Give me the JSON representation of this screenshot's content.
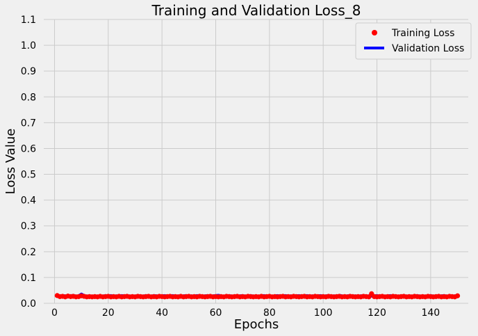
{
  "chart_data": {
    "type": "line",
    "title": "Training and Validation Loss_8",
    "xlabel": "Epochs",
    "ylabel": "Loss Value",
    "xlim": [
      -4,
      154
    ],
    "ylim": [
      0,
      1.1
    ],
    "xticks": [
      0,
      20,
      40,
      60,
      80,
      100,
      120,
      140
    ],
    "yticks": [
      0.0,
      0.1,
      0.2,
      0.3,
      0.4,
      0.5,
      0.6,
      0.7,
      0.8,
      0.9,
      1.0,
      1.1
    ],
    "grid": true,
    "legend": "top-right",
    "series": [
      {
        "name": "Training Loss",
        "style": "points",
        "color": "#ff0000",
        "x": [
          1,
          2,
          3,
          4,
          5,
          6,
          7,
          8,
          9,
          10,
          11,
          12,
          13,
          14,
          15,
          16,
          17,
          18,
          19,
          20,
          21,
          22,
          23,
          24,
          25,
          26,
          27,
          28,
          29,
          30,
          31,
          32,
          33,
          34,
          35,
          36,
          37,
          38,
          39,
          40,
          41,
          42,
          43,
          44,
          45,
          46,
          47,
          48,
          49,
          50,
          51,
          52,
          53,
          54,
          55,
          56,
          57,
          58,
          59,
          60,
          61,
          62,
          63,
          64,
          65,
          66,
          67,
          68,
          69,
          70,
          71,
          72,
          73,
          74,
          75,
          76,
          77,
          78,
          79,
          80,
          81,
          82,
          83,
          84,
          85,
          86,
          87,
          88,
          89,
          90,
          91,
          92,
          93,
          94,
          95,
          96,
          97,
          98,
          99,
          100,
          101,
          102,
          103,
          104,
          105,
          106,
          107,
          108,
          109,
          110,
          111,
          112,
          113,
          114,
          115,
          116,
          117,
          118,
          119,
          120,
          121,
          122,
          123,
          124,
          125,
          126,
          127,
          128,
          129,
          130,
          131,
          132,
          133,
          134,
          135,
          136,
          137,
          138,
          139,
          140,
          141,
          142,
          143,
          144,
          145,
          146,
          147,
          148,
          149,
          150
        ],
        "y": [
          0.03,
          0.026,
          0.027,
          0.025,
          0.028,
          0.026,
          0.027,
          0.025,
          0.026,
          0.029,
          0.027,
          0.025,
          0.026,
          0.025,
          0.026,
          0.025,
          0.027,
          0.025,
          0.026,
          0.027,
          0.025,
          0.026,
          0.025,
          0.027,
          0.025,
          0.026,
          0.027,
          0.025,
          0.026,
          0.025,
          0.027,
          0.026,
          0.025,
          0.026,
          0.027,
          0.025,
          0.026,
          0.025,
          0.027,
          0.026,
          0.025,
          0.026,
          0.027,
          0.025,
          0.026,
          0.025,
          0.027,
          0.025,
          0.026,
          0.027,
          0.025,
          0.026,
          0.025,
          0.027,
          0.026,
          0.025,
          0.026,
          0.027,
          0.025,
          0.026,
          0.025,
          0.026,
          0.025,
          0.027,
          0.026,
          0.025,
          0.026,
          0.027,
          0.025,
          0.026,
          0.025,
          0.027,
          0.026,
          0.025,
          0.026,
          0.025,
          0.027,
          0.025,
          0.026,
          0.027,
          0.025,
          0.026,
          0.025,
          0.026,
          0.027,
          0.025,
          0.026,
          0.025,
          0.027,
          0.026,
          0.025,
          0.026,
          0.027,
          0.025,
          0.026,
          0.025,
          0.027,
          0.026,
          0.025,
          0.026,
          0.025,
          0.027,
          0.026,
          0.025,
          0.026,
          0.027,
          0.025,
          0.026,
          0.025,
          0.027,
          0.026,
          0.025,
          0.026,
          0.025,
          0.027,
          0.026,
          0.025,
          0.037,
          0.026,
          0.025,
          0.026,
          0.027,
          0.025,
          0.026,
          0.025,
          0.027,
          0.026,
          0.025,
          0.026,
          0.027,
          0.025,
          0.026,
          0.025,
          0.027,
          0.026,
          0.025,
          0.026,
          0.025,
          0.027,
          0.026,
          0.025,
          0.026,
          0.027,
          0.025,
          0.026,
          0.025,
          0.027,
          0.026,
          0.025,
          0.029
        ]
      },
      {
        "name": "Validation Loss",
        "style": "line",
        "color": "#0000ff",
        "x": [
          1,
          2,
          3,
          4,
          5,
          6,
          7,
          8,
          9,
          10,
          11,
          12,
          13,
          14,
          15,
          16,
          17,
          18,
          19,
          20,
          21,
          22,
          23,
          24,
          25,
          26,
          27,
          28,
          29,
          30,
          31,
          32,
          33,
          34,
          35,
          36,
          37,
          38,
          39,
          40,
          41,
          42,
          43,
          44,
          45,
          46,
          47,
          48,
          49,
          50,
          51,
          52,
          53,
          54,
          55,
          56,
          57,
          58,
          59,
          60,
          61,
          62,
          63,
          64,
          65,
          66,
          67,
          68,
          69,
          70,
          71,
          72,
          73,
          74,
          75,
          76,
          77,
          78,
          79,
          80,
          81,
          82,
          83,
          84,
          85,
          86,
          87,
          88,
          89,
          90,
          91,
          92,
          93,
          94,
          95,
          96,
          97,
          98,
          99,
          100,
          101,
          102,
          103,
          104,
          105,
          106,
          107,
          108,
          109,
          110,
          111,
          112,
          113,
          114,
          115,
          116,
          117,
          118,
          119,
          120,
          121,
          122,
          123,
          124,
          125,
          126,
          127,
          128,
          129,
          130,
          131,
          132,
          133,
          134,
          135,
          136,
          137,
          138,
          139,
          140,
          141,
          142,
          143,
          144,
          145,
          146,
          147,
          148,
          149,
          150
        ],
        "y": [
          0.029,
          0.028,
          0.03,
          0.029,
          0.028,
          0.029,
          0.031,
          0.028,
          0.029,
          0.036,
          0.03,
          0.028,
          0.029,
          0.028,
          0.029,
          0.028,
          0.029,
          0.028,
          0.03,
          0.029,
          0.03,
          0.028,
          0.029,
          0.028,
          0.03,
          0.029,
          0.03,
          0.028,
          0.029,
          0.028,
          0.03,
          0.029,
          0.028,
          0.03,
          0.029,
          0.028,
          0.03,
          0.029,
          0.028,
          0.029,
          0.03,
          0.028,
          0.029,
          0.03,
          0.028,
          0.029,
          0.028,
          0.029,
          0.03,
          0.028,
          0.029,
          0.028,
          0.03,
          0.029,
          0.028,
          0.029,
          0.03,
          0.028,
          0.029,
          0.03,
          0.031,
          0.029,
          0.028,
          0.029,
          0.03,
          0.028,
          0.029,
          0.028,
          0.029,
          0.03,
          0.028,
          0.029,
          0.03,
          0.028,
          0.029,
          0.028,
          0.029,
          0.03,
          0.028,
          0.029,
          0.028,
          0.029,
          0.03,
          0.028,
          0.029,
          0.03,
          0.028,
          0.029,
          0.028,
          0.029,
          0.03,
          0.028,
          0.029,
          0.03,
          0.028,
          0.029,
          0.028,
          0.029,
          0.03,
          0.028,
          0.029,
          0.03,
          0.028,
          0.029,
          0.028,
          0.031,
          0.029,
          0.028,
          0.029,
          0.03,
          0.028,
          0.029,
          0.028,
          0.029,
          0.03,
          0.028,
          0.029,
          0.028,
          0.029,
          0.03,
          0.028,
          0.029,
          0.028,
          0.029,
          0.03,
          0.028,
          0.029,
          0.028,
          0.029,
          0.03,
          0.028,
          0.029,
          0.028,
          0.029,
          0.03,
          0.028,
          0.029,
          0.028,
          0.029,
          0.03,
          0.028,
          0.029,
          0.028,
          0.029,
          0.03,
          0.028,
          0.029,
          0.028,
          0.029,
          0.03
        ]
      }
    ]
  }
}
